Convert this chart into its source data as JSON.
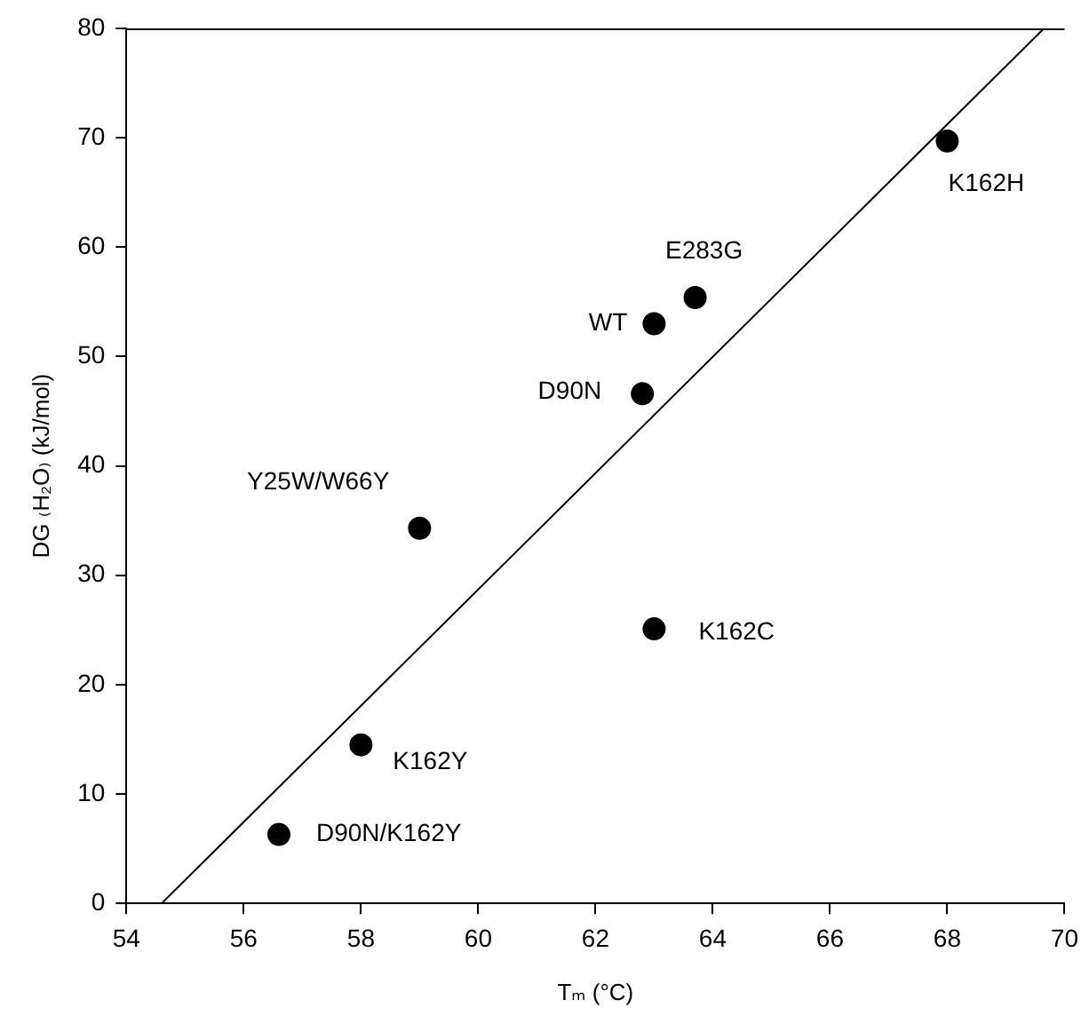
{
  "chart_data": {
    "type": "scatter",
    "xlabel": "Tₘ (°C)",
    "ylabel": "DG ₍H₂O₎ (kJ/mol)",
    "xlim": [
      54,
      70
    ],
    "xticks": [
      54,
      56,
      58,
      60,
      62,
      64,
      66,
      68,
      70
    ],
    "ylim": [
      0,
      80
    ],
    "yticks": [
      0,
      10,
      20,
      30,
      40,
      50,
      60,
      70,
      80
    ],
    "grid": false,
    "legend": false,
    "marker": "circle",
    "series": [
      {
        "type": "scatter",
        "color": "#000000",
        "x": [
          68,
          63.7,
          63,
          62.8,
          59,
          63,
          58,
          56.6
        ],
        "values": [
          69.7,
          55.4,
          53,
          46.6,
          34.3,
          25.1,
          14.5,
          6.3
        ]
      },
      {
        "type": "line",
        "color": "#000000",
        "marker": "none",
        "x": [
          54.6,
          69.65
        ],
        "values": [
          0,
          80
        ]
      }
    ],
    "annotations": [
      {
        "text": "K162H",
        "x": 68,
        "y": 69.7
      },
      {
        "text": "E283G",
        "x": 63.7,
        "y": 55.4
      },
      {
        "text": "WT",
        "x": 63,
        "y": 53
      },
      {
        "text": "D90N",
        "x": 62.8,
        "y": 46.6
      },
      {
        "text": "Y25W/W66Y",
        "x": 59,
        "y": 34.3
      },
      {
        "text": "K162C",
        "x": 63,
        "y": 25.1
      },
      {
        "text": "K162Y",
        "x": 58,
        "y": 14.5
      },
      {
        "text": "D90N/K162Y",
        "x": 56.6,
        "y": 6.3
      }
    ]
  }
}
